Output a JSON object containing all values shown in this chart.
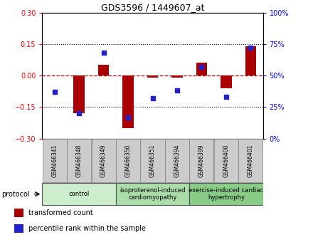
{
  "title": "GDS3596 / 1449607_at",
  "samples": [
    "GSM466341",
    "GSM466348",
    "GSM466349",
    "GSM466350",
    "GSM466351",
    "GSM466394",
    "GSM466399",
    "GSM466400",
    "GSM466401"
  ],
  "transformed_count": [
    0.0,
    -0.18,
    0.05,
    -0.25,
    -0.01,
    -0.01,
    0.06,
    -0.06,
    0.14
  ],
  "percentile_rank": [
    37,
    20,
    68,
    17,
    32,
    38,
    57,
    33,
    72
  ],
  "ylim_left": [
    -0.3,
    0.3
  ],
  "ylim_right": [
    0,
    100
  ],
  "yticks_left": [
    -0.3,
    -0.15,
    0,
    0.15,
    0.3
  ],
  "yticks_right": [
    0,
    25,
    50,
    75,
    100
  ],
  "hlines": [
    -0.15,
    0.0,
    0.15
  ],
  "bar_color": "#aa0000",
  "dot_color": "#2222cc",
  "zero_line_color": "#cc0000",
  "grid_color": "#000000",
  "protocol_groups": [
    {
      "label": "control",
      "start": 0,
      "end": 3,
      "color": "#cceecc"
    },
    {
      "label": "isoproterenol-induced\ncardiomyopathy",
      "start": 3,
      "end": 6,
      "color": "#aaddaa"
    },
    {
      "label": "exercise-induced cardiac\nhypertrophy",
      "start": 6,
      "end": 9,
      "color": "#88cc88"
    }
  ],
  "legend_items": [
    {
      "label": "transformed count",
      "color": "#aa0000"
    },
    {
      "label": "percentile rank within the sample",
      "color": "#2222cc"
    }
  ],
  "protocol_label": "protocol",
  "background_color": "#ffffff",
  "plot_bg_color": "#ffffff",
  "tick_bg_color": "#cccccc"
}
